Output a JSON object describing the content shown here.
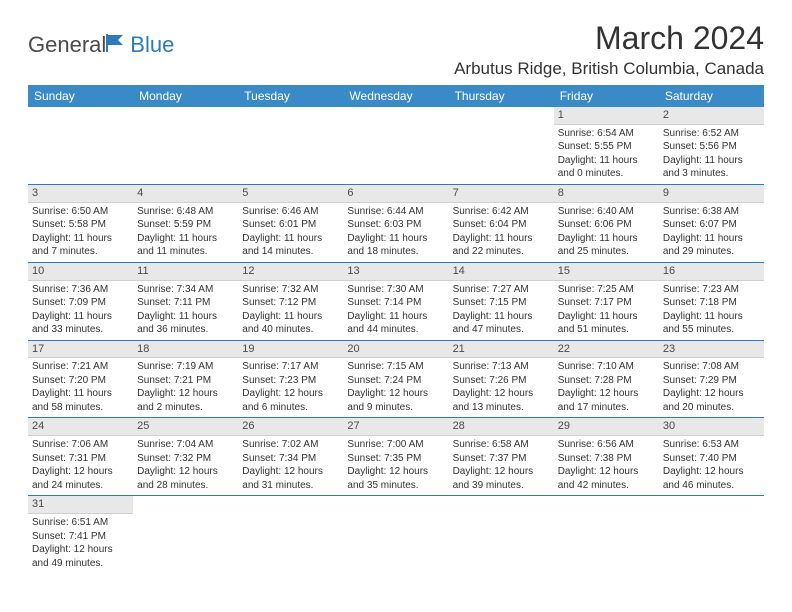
{
  "logo": {
    "part1": "General",
    "part2": "Blue"
  },
  "title": "March 2024",
  "location": "Arbutus Ridge, British Columbia, Canada",
  "colors": {
    "header_bg": "#3a8ac7",
    "header_text": "#ffffff",
    "cell_divider": "#2d7bbd",
    "daynum_bg": "#e8e8e8",
    "text": "#333333",
    "logo_gray": "#4a4a4a",
    "logo_blue": "#2d7bbd"
  },
  "day_names": [
    "Sunday",
    "Monday",
    "Tuesday",
    "Wednesday",
    "Thursday",
    "Friday",
    "Saturday"
  ],
  "weeks": [
    [
      null,
      null,
      null,
      null,
      null,
      {
        "d": "1",
        "sr": "6:54 AM",
        "ss": "5:55 PM",
        "dl": "11 hours and 0 minutes."
      },
      {
        "d": "2",
        "sr": "6:52 AM",
        "ss": "5:56 PM",
        "dl": "11 hours and 3 minutes."
      }
    ],
    [
      {
        "d": "3",
        "sr": "6:50 AM",
        "ss": "5:58 PM",
        "dl": "11 hours and 7 minutes."
      },
      {
        "d": "4",
        "sr": "6:48 AM",
        "ss": "5:59 PM",
        "dl": "11 hours and 11 minutes."
      },
      {
        "d": "5",
        "sr": "6:46 AM",
        "ss": "6:01 PM",
        "dl": "11 hours and 14 minutes."
      },
      {
        "d": "6",
        "sr": "6:44 AM",
        "ss": "6:03 PM",
        "dl": "11 hours and 18 minutes."
      },
      {
        "d": "7",
        "sr": "6:42 AM",
        "ss": "6:04 PM",
        "dl": "11 hours and 22 minutes."
      },
      {
        "d": "8",
        "sr": "6:40 AM",
        "ss": "6:06 PM",
        "dl": "11 hours and 25 minutes."
      },
      {
        "d": "9",
        "sr": "6:38 AM",
        "ss": "6:07 PM",
        "dl": "11 hours and 29 minutes."
      }
    ],
    [
      {
        "d": "10",
        "sr": "7:36 AM",
        "ss": "7:09 PM",
        "dl": "11 hours and 33 minutes."
      },
      {
        "d": "11",
        "sr": "7:34 AM",
        "ss": "7:11 PM",
        "dl": "11 hours and 36 minutes."
      },
      {
        "d": "12",
        "sr": "7:32 AM",
        "ss": "7:12 PM",
        "dl": "11 hours and 40 minutes."
      },
      {
        "d": "13",
        "sr": "7:30 AM",
        "ss": "7:14 PM",
        "dl": "11 hours and 44 minutes."
      },
      {
        "d": "14",
        "sr": "7:27 AM",
        "ss": "7:15 PM",
        "dl": "11 hours and 47 minutes."
      },
      {
        "d": "15",
        "sr": "7:25 AM",
        "ss": "7:17 PM",
        "dl": "11 hours and 51 minutes."
      },
      {
        "d": "16",
        "sr": "7:23 AM",
        "ss": "7:18 PM",
        "dl": "11 hours and 55 minutes."
      }
    ],
    [
      {
        "d": "17",
        "sr": "7:21 AM",
        "ss": "7:20 PM",
        "dl": "11 hours and 58 minutes."
      },
      {
        "d": "18",
        "sr": "7:19 AM",
        "ss": "7:21 PM",
        "dl": "12 hours and 2 minutes."
      },
      {
        "d": "19",
        "sr": "7:17 AM",
        "ss": "7:23 PM",
        "dl": "12 hours and 6 minutes."
      },
      {
        "d": "20",
        "sr": "7:15 AM",
        "ss": "7:24 PM",
        "dl": "12 hours and 9 minutes."
      },
      {
        "d": "21",
        "sr": "7:13 AM",
        "ss": "7:26 PM",
        "dl": "12 hours and 13 minutes."
      },
      {
        "d": "22",
        "sr": "7:10 AM",
        "ss": "7:28 PM",
        "dl": "12 hours and 17 minutes."
      },
      {
        "d": "23",
        "sr": "7:08 AM",
        "ss": "7:29 PM",
        "dl": "12 hours and 20 minutes."
      }
    ],
    [
      {
        "d": "24",
        "sr": "7:06 AM",
        "ss": "7:31 PM",
        "dl": "12 hours and 24 minutes."
      },
      {
        "d": "25",
        "sr": "7:04 AM",
        "ss": "7:32 PM",
        "dl": "12 hours and 28 minutes."
      },
      {
        "d": "26",
        "sr": "7:02 AM",
        "ss": "7:34 PM",
        "dl": "12 hours and 31 minutes."
      },
      {
        "d": "27",
        "sr": "7:00 AM",
        "ss": "7:35 PM",
        "dl": "12 hours and 35 minutes."
      },
      {
        "d": "28",
        "sr": "6:58 AM",
        "ss": "7:37 PM",
        "dl": "12 hours and 39 minutes."
      },
      {
        "d": "29",
        "sr": "6:56 AM",
        "ss": "7:38 PM",
        "dl": "12 hours and 42 minutes."
      },
      {
        "d": "30",
        "sr": "6:53 AM",
        "ss": "7:40 PM",
        "dl": "12 hours and 46 minutes."
      }
    ],
    [
      {
        "d": "31",
        "sr": "6:51 AM",
        "ss": "7:41 PM",
        "dl": "12 hours and 49 minutes."
      },
      null,
      null,
      null,
      null,
      null,
      null
    ]
  ],
  "labels": {
    "sunrise": "Sunrise: ",
    "sunset": "Sunset: ",
    "daylight": "Daylight: "
  }
}
